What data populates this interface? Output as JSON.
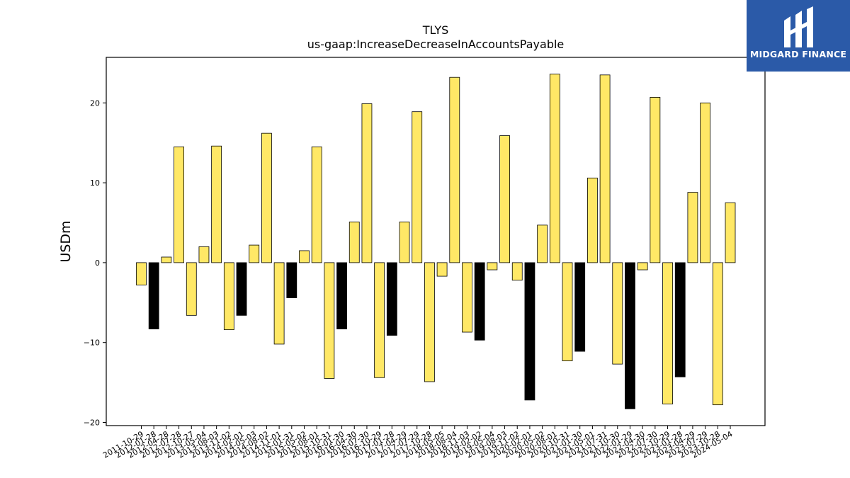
{
  "chart_data": {
    "type": "bar",
    "title": "TLYS",
    "subtitle": "us-gaap:IncreaseDecreaseInAccountsPayable",
    "xlabel": "",
    "ylabel": "USDm",
    "ylim": [
      -20.4,
      25.7
    ],
    "yticks": [
      -20,
      -10,
      0,
      10,
      20
    ],
    "grid": false,
    "colors": {
      "yellow": "#ffe866",
      "black": "#000000",
      "edge": "#000000"
    },
    "categories": [
      "2011-10-29",
      "2012-01-28",
      "2012-04-28",
      "2012-07-28",
      "2012-10-27",
      "2013-05-04",
      "2013-08-03",
      "2013-11-02",
      "2014-02-01",
      "2014-05-03",
      "2014-08-02",
      "2014-11-01",
      "2015-01-31",
      "2015-05-02",
      "2015-08-01",
      "2015-10-31",
      "2016-01-30",
      "2016-04-30",
      "2016-07-30",
      "2016-10-29",
      "2017-01-28",
      "2017-04-29",
      "2017-07-29",
      "2017-10-28",
      "2018-05-05",
      "2018-08-04",
      "2018-11-03",
      "2019-02-02",
      "2019-05-04",
      "2019-08-03",
      "2019-11-02",
      "2020-02-01",
      "2020-05-02",
      "2020-08-01",
      "2020-10-31",
      "2021-01-30",
      "2021-05-01",
      "2021-07-31",
      "2021-10-30",
      "2022-01-29",
      "2022-04-30",
      "2022-07-30",
      "2022-10-29",
      "2023-01-28",
      "2023-04-29",
      "2023-07-29",
      "2023-10-28",
      "2024-05-04"
    ],
    "values": [
      -2.8,
      -8.3,
      0.7,
      14.5,
      -6.6,
      2.0,
      14.6,
      -8.4,
      -6.6,
      2.2,
      16.2,
      -10.2,
      -4.4,
      1.5,
      14.5,
      -14.5,
      -8.3,
      5.1,
      19.9,
      -14.4,
      -9.1,
      5.1,
      18.9,
      -14.9,
      -1.7,
      23.2,
      -8.7,
      -9.7,
      -0.9,
      15.9,
      -2.2,
      -17.2,
      4.7,
      23.6,
      -12.3,
      -11.1,
      10.6,
      23.5,
      -12.7,
      -18.3,
      -0.9,
      20.7,
      -17.7,
      -14.3,
      8.8,
      20.0,
      -17.8,
      7.5
    ],
    "bar_colors": [
      "yellow",
      "black",
      "yellow",
      "yellow",
      "yellow",
      "yellow",
      "yellow",
      "yellow",
      "black",
      "yellow",
      "yellow",
      "yellow",
      "black",
      "yellow",
      "yellow",
      "yellow",
      "black",
      "yellow",
      "yellow",
      "yellow",
      "black",
      "yellow",
      "yellow",
      "yellow",
      "yellow",
      "yellow",
      "yellow",
      "black",
      "yellow",
      "yellow",
      "yellow",
      "black",
      "yellow",
      "yellow",
      "yellow",
      "black",
      "yellow",
      "yellow",
      "yellow",
      "black",
      "yellow",
      "yellow",
      "yellow",
      "black",
      "yellow",
      "yellow",
      "yellow",
      "yellow"
    ]
  },
  "logo": {
    "brand": "MIDGARD FINANCE"
  }
}
